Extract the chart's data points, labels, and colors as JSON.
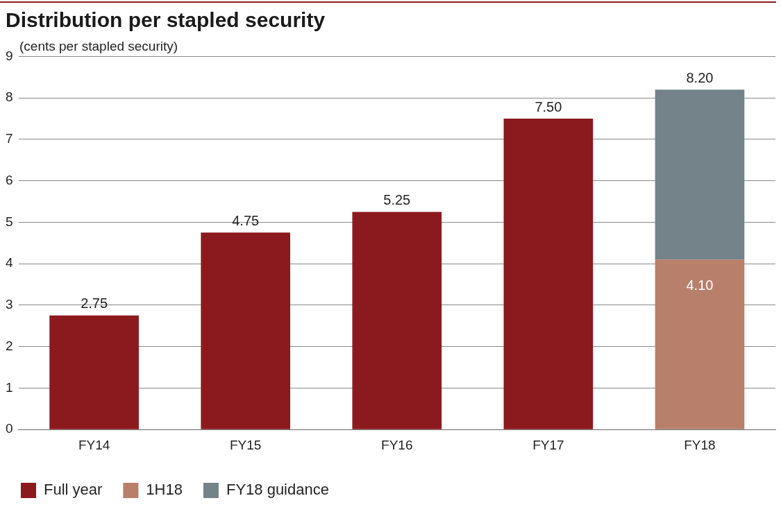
{
  "chart_data": {
    "type": "bar",
    "title": "Distribution per stapled security",
    "ylabel": "(cents per stapled security)",
    "categories": [
      "FY14",
      "FY15",
      "FY16",
      "FY17",
      "FY18"
    ],
    "series": [
      {
        "name": "Full year",
        "color": "#8b1a1e",
        "values": [
          2.75,
          4.75,
          5.25,
          7.5,
          null
        ],
        "value_labels": [
          "2.75",
          "4.75",
          "5.25",
          "7.50",
          null
        ]
      },
      {
        "name": "1H18",
        "color": "#b87f6a",
        "values": [
          null,
          null,
          null,
          null,
          4.1
        ],
        "value_labels": [
          null,
          null,
          null,
          null,
          "4.10"
        ]
      },
      {
        "name": "FY18 guidance",
        "color": "#74828a",
        "values": [
          null,
          null,
          null,
          null,
          4.1
        ]
      }
    ],
    "totals": [
      null,
      null,
      null,
      null,
      "8.20"
    ],
    "stacked": true,
    "ylim": [
      0,
      9
    ],
    "yticks": [
      0,
      1,
      2,
      3,
      4,
      5,
      6,
      7,
      8,
      9
    ],
    "grid": "y",
    "legend": "bottom left"
  }
}
